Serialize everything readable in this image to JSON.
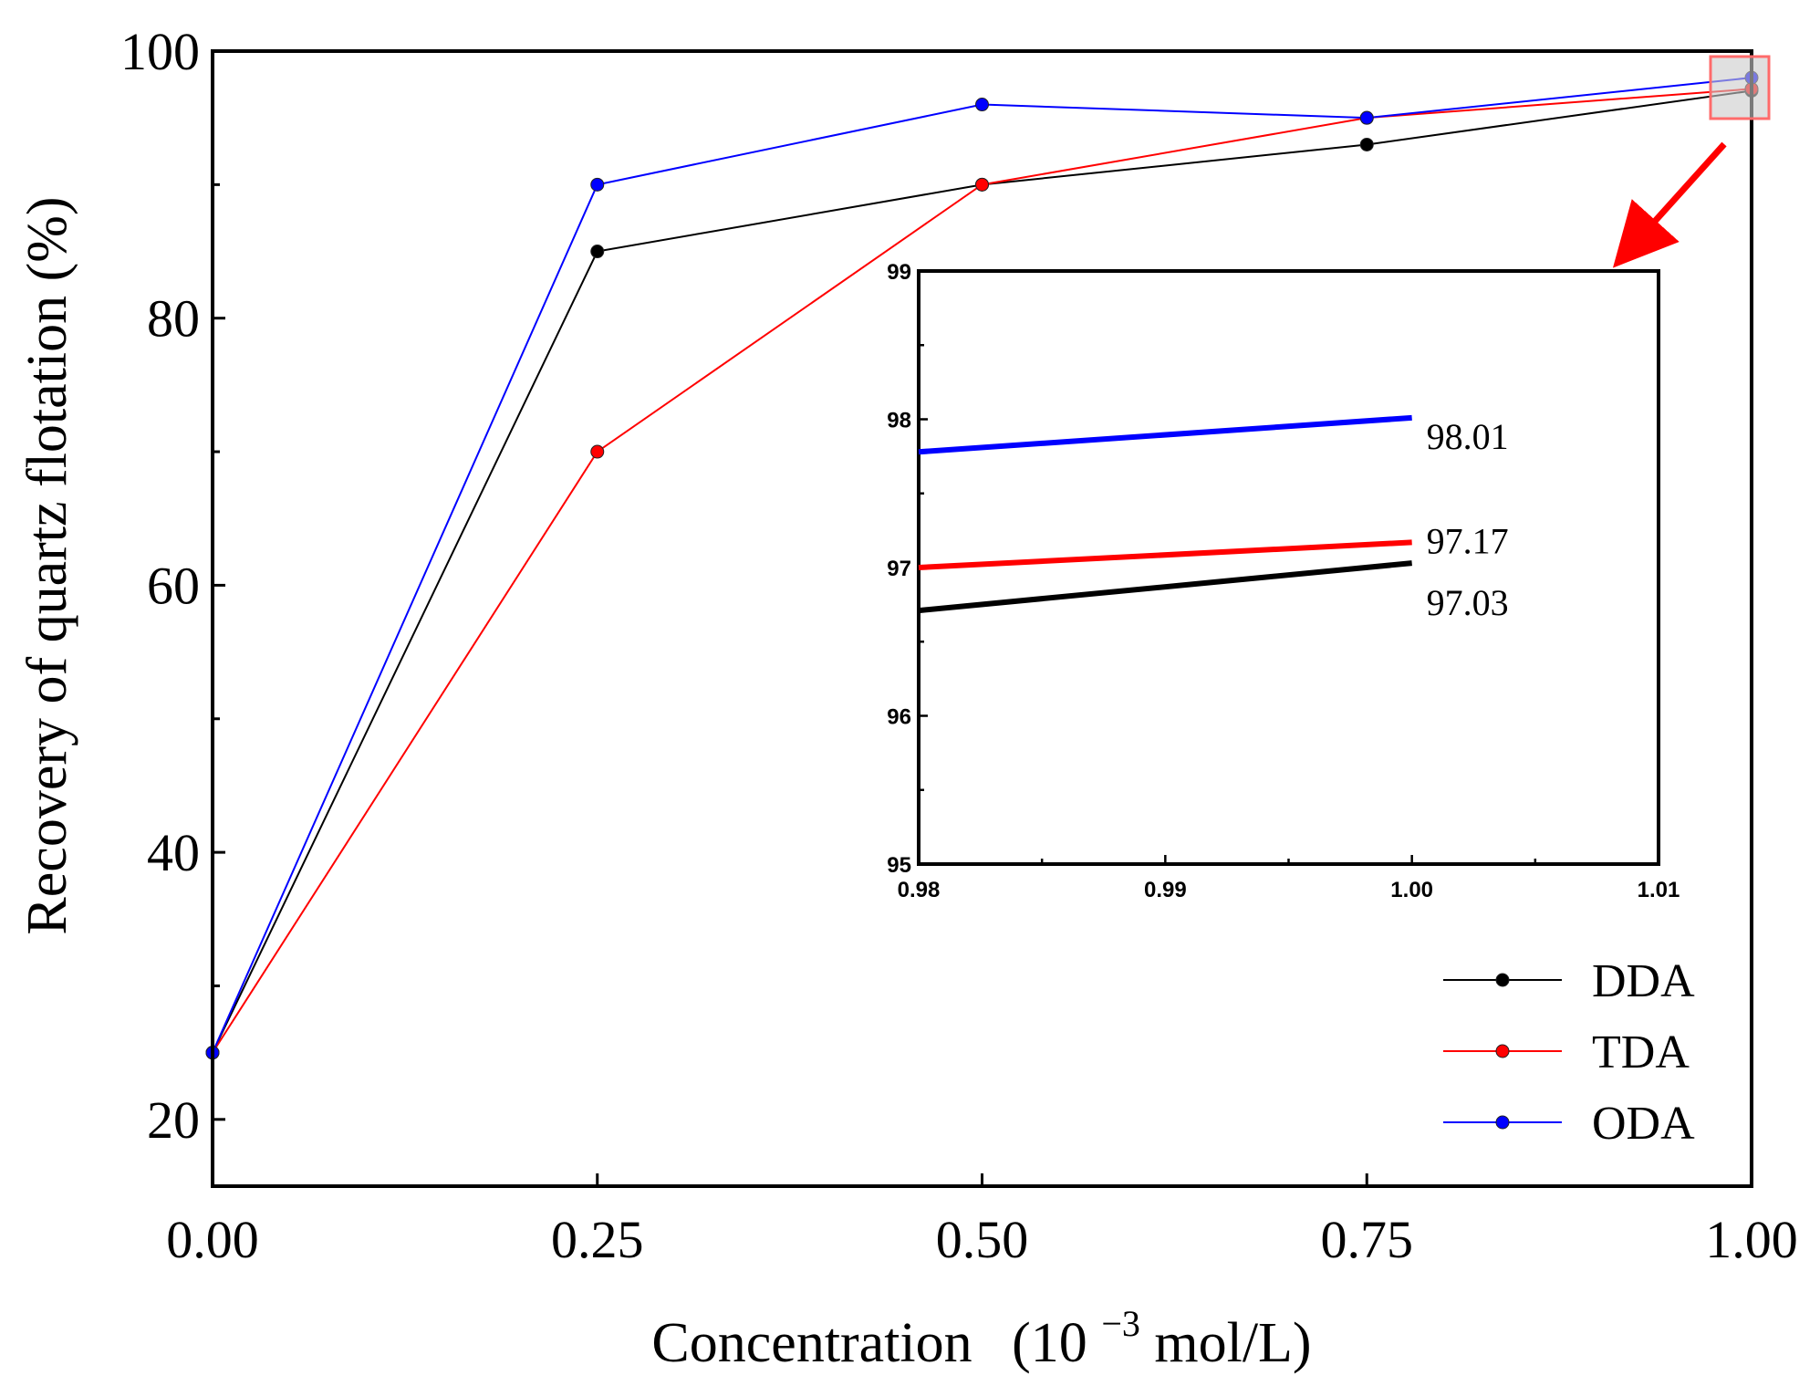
{
  "chart_data": {
    "type": "line",
    "xlabel": "Concentration",
    "xlabel_unit_prefix": "(10",
    "xlabel_unit_exp": "−3",
    "xlabel_unit_suffix": "mol/L)",
    "ylabel": "Recovery of quartz flotation  (%)",
    "xlim": [
      0,
      1.0
    ],
    "ylim": [
      15,
      100
    ],
    "x_ticks": [
      0,
      0.25,
      0.5,
      0.75,
      1.0
    ],
    "x_tick_labels": [
      "0.00",
      "0.25",
      "0.50",
      "0.75",
      "1.00"
    ],
    "y_ticks": [
      20,
      40,
      60,
      80,
      100
    ],
    "y_tick_labels": [
      "20",
      "40",
      "60",
      "80",
      "100"
    ],
    "y_minor_ticks": [
      30,
      50,
      70,
      90
    ],
    "x": [
      0,
      0.25,
      0.5,
      0.75,
      1.0
    ],
    "series": [
      {
        "name": "DDA",
        "color": "#000000",
        "values": [
          25,
          85,
          90,
          93,
          97.03
        ]
      },
      {
        "name": "TDA",
        "color": "#ff0000",
        "values": [
          25,
          70,
          90,
          95,
          97.17
        ]
      },
      {
        "name": "ODA",
        "color": "#0000ff",
        "values": [
          25,
          90,
          96,
          95,
          98.01
        ]
      }
    ],
    "legend_position": "bottom-right",
    "highlight": {
      "x": 1.0,
      "color": "#ff0000"
    },
    "inset": {
      "xlim": [
        0.98,
        1.01
      ],
      "ylim": [
        95,
        99
      ],
      "x_ticks": [
        0.98,
        0.99,
        1.0,
        1.01
      ],
      "x_tick_labels": [
        "0.98",
        "0.99",
        "1.00",
        "1.01"
      ],
      "y_ticks": [
        95,
        96,
        97,
        98,
        99
      ],
      "y_tick_labels": [
        "95",
        "96",
        "97",
        "98",
        "99"
      ],
      "series": [
        {
          "name": "DDA",
          "color": "#000000",
          "x": [
            0.98,
            1.0
          ],
          "values": [
            96.71,
            97.03
          ],
          "label": "97.03"
        },
        {
          "name": "TDA",
          "color": "#ff0000",
          "x": [
            0.98,
            1.0
          ],
          "values": [
            97.0,
            97.17
          ],
          "label": "97.17"
        },
        {
          "name": "ODA",
          "color": "#0000ff",
          "x": [
            0.98,
            1.0
          ],
          "values": [
            97.78,
            98.01
          ],
          "label": "98.01"
        }
      ]
    }
  }
}
